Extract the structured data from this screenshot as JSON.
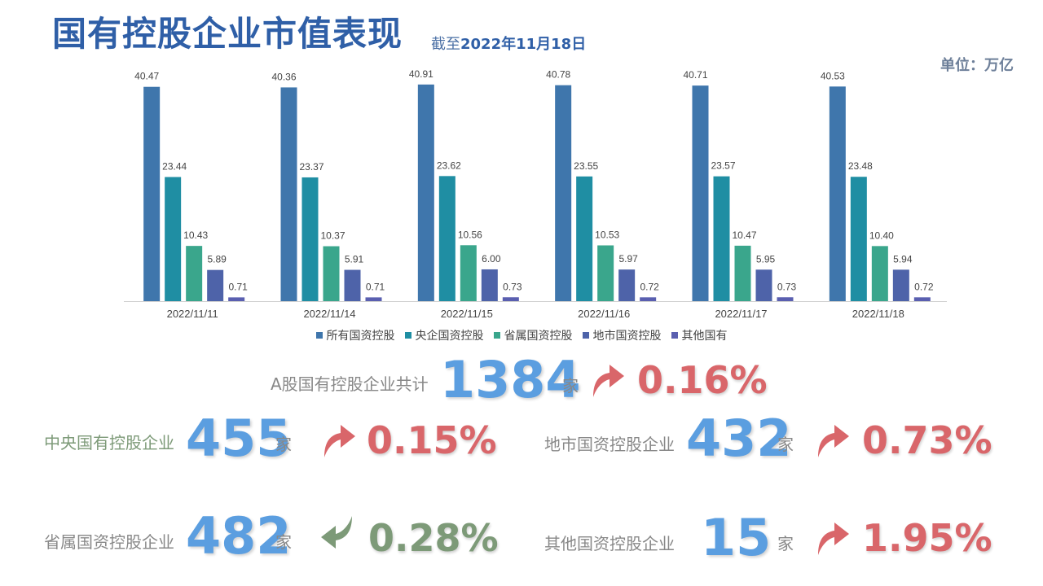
{
  "header": {
    "title": "国有控股企业市值表现",
    "subtitle_prefix": "截至",
    "subtitle_date": "2022年11月18日",
    "unit": "单位：万亿"
  },
  "chart_data": {
    "type": "bar",
    "title": "",
    "xlabel": "",
    "ylabel": "",
    "ylim": [
      0,
      45
    ],
    "grid": false,
    "legend_position": "bottom",
    "categories": [
      "2022/11/11",
      "2022/11/14",
      "2022/11/15",
      "2022/11/16",
      "2022/11/17",
      "2022/11/18"
    ],
    "series": [
      {
        "name": "所有国资控股",
        "color": "#3f76ac",
        "values": [
          40.47,
          40.36,
          40.91,
          40.78,
          40.71,
          40.53
        ],
        "labels": [
          "40.47",
          "40.36",
          "40.91",
          "40.78",
          "40.71",
          "40.53"
        ]
      },
      {
        "name": "央企国资控股",
        "color": "#1f8ea3",
        "values": [
          23.44,
          23.37,
          23.62,
          23.55,
          23.57,
          23.48
        ],
        "labels": [
          "23.44",
          "23.37",
          "23.62",
          "23.55",
          "23.57",
          "23.48"
        ]
      },
      {
        "name": "省属国资控股",
        "color": "#3aa68c",
        "values": [
          10.43,
          10.37,
          10.56,
          10.53,
          10.47,
          10.4
        ],
        "labels": [
          "10.43",
          "10.37",
          "10.56",
          "10.53",
          "10.47",
          "10.40"
        ]
      },
      {
        "name": "地市国资控股",
        "color": "#4e63a9",
        "values": [
          5.89,
          5.91,
          6.0,
          5.97,
          5.95,
          5.94
        ],
        "labels": [
          "5.89",
          "5.91",
          "6.00",
          "5.97",
          "5.95",
          "5.94"
        ]
      },
      {
        "name": "其他国有",
        "color": "#5a5fb0",
        "values": [
          0.71,
          0.71,
          0.73,
          0.72,
          0.73,
          0.72
        ],
        "labels": [
          "0.71",
          "0.71",
          "0.73",
          "0.72",
          "0.73",
          "0.72"
        ]
      }
    ]
  },
  "stats": {
    "total": {
      "label": "A股国有控股企业共计",
      "count": "1384",
      "unit": "家",
      "direction": "up",
      "pct": "0.16%"
    },
    "central": {
      "label": "中央国有控股企业",
      "count": "455",
      "unit": "家",
      "direction": "up",
      "pct": "0.15%"
    },
    "city": {
      "label": "地市国资控股企业",
      "count": "432",
      "unit": "家",
      "direction": "up",
      "pct": "0.73%"
    },
    "province": {
      "label": "省属国资控股企业",
      "count": "482",
      "unit": "家",
      "direction": "down",
      "pct": "0.28%"
    },
    "other": {
      "label": "其他国资控股企业",
      "count": "15",
      "unit": "家",
      "direction": "up",
      "pct": "1.95%"
    }
  },
  "colors": {
    "up": "#d9666a",
    "down": "#7d9a78",
    "count": "#5b9ee0",
    "title": "#2f5fa7"
  }
}
